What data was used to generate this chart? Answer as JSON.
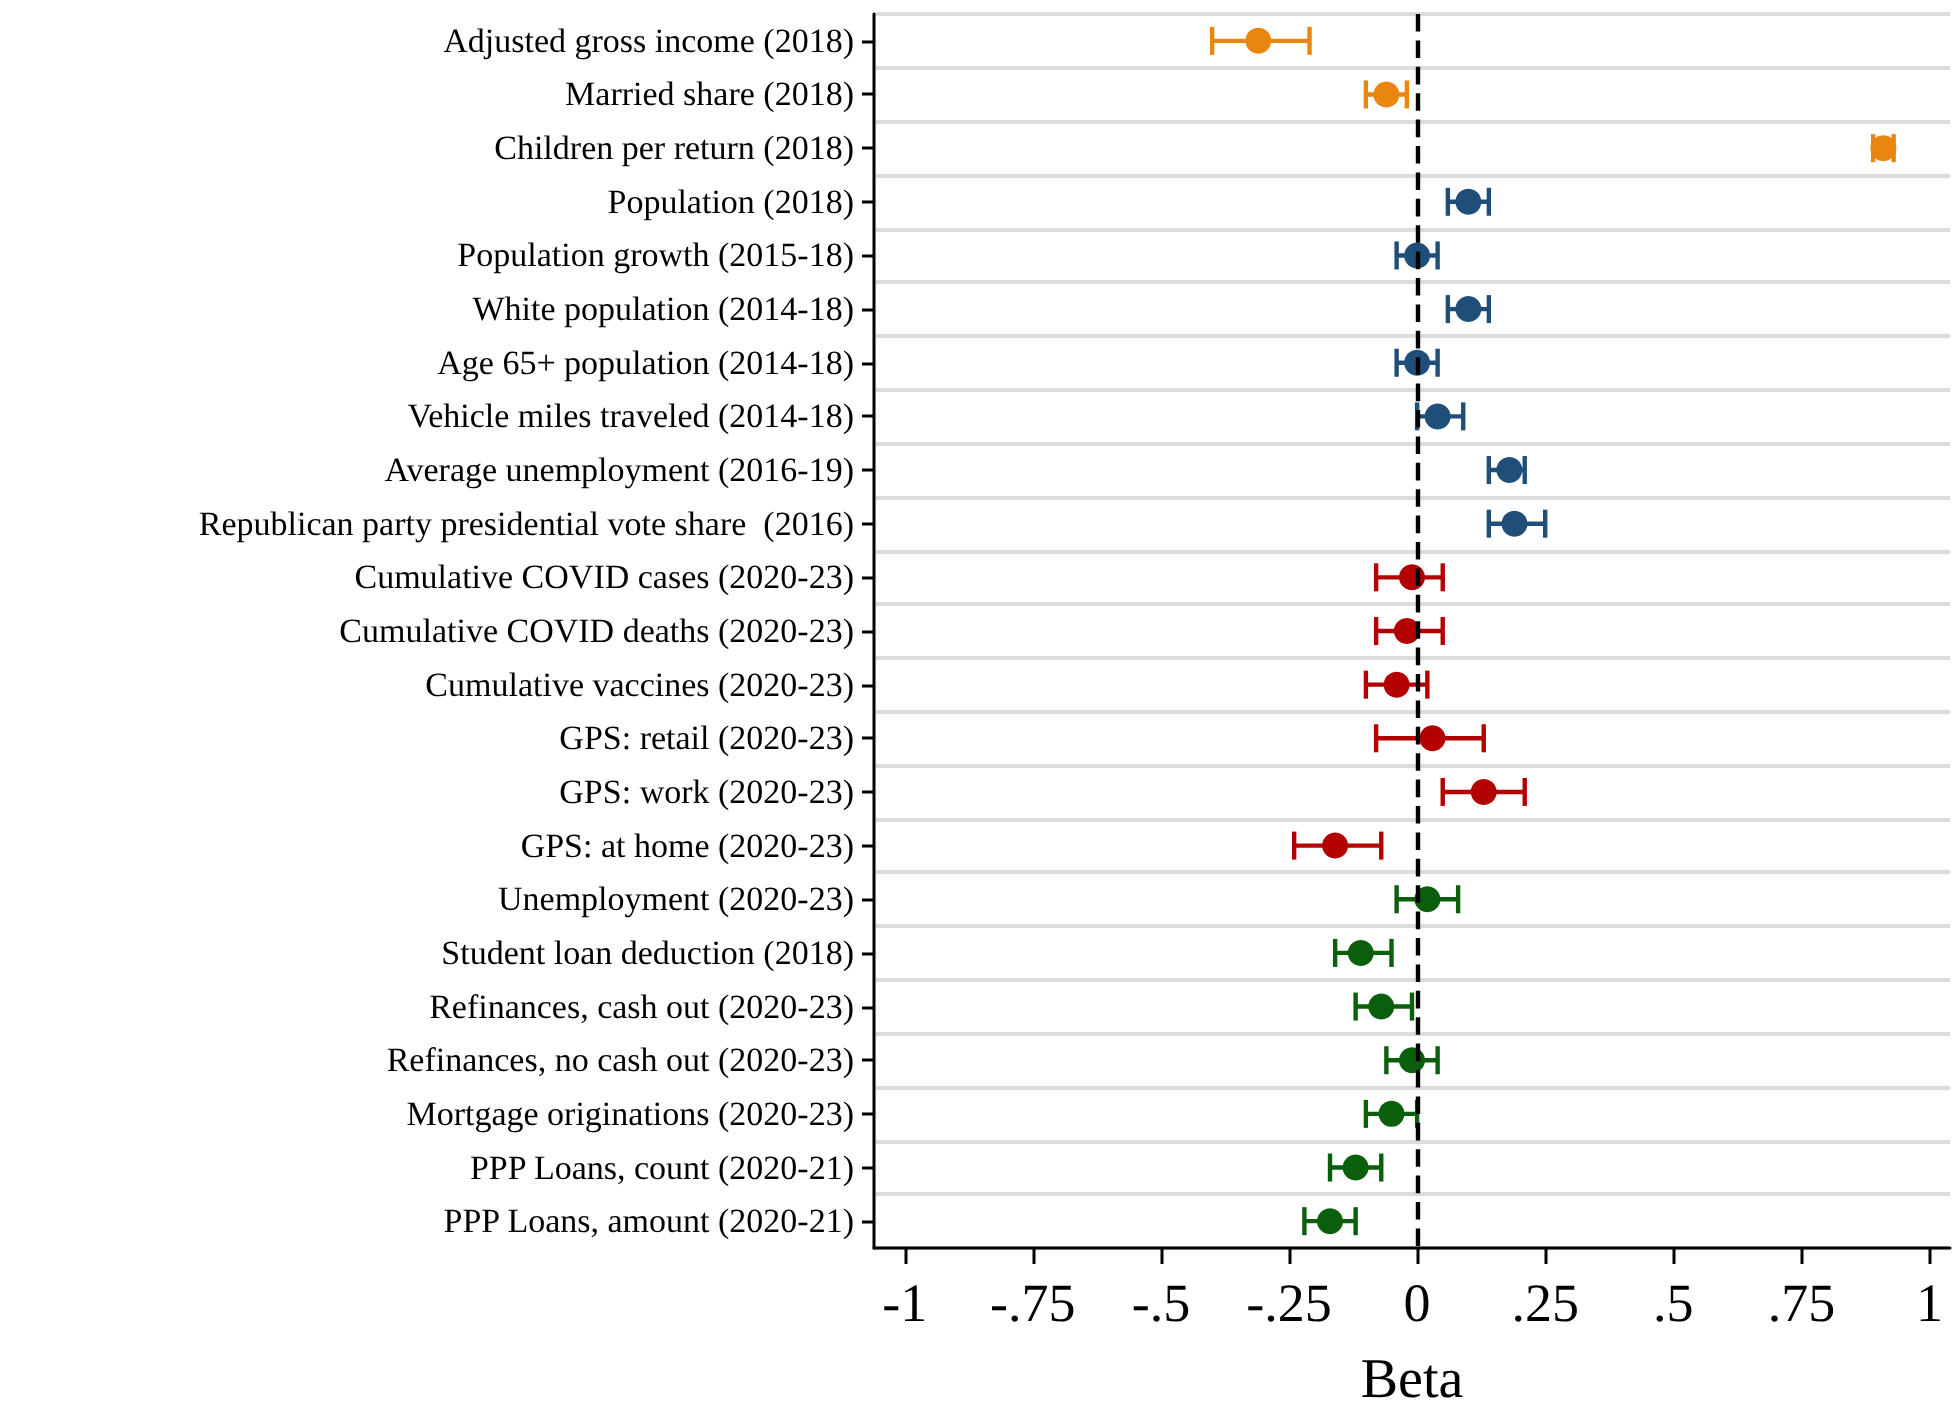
{
  "chart_data": {
    "type": "scatter",
    "orientation": "horizontal",
    "xlabel": "Beta",
    "categories": [
      "Adjusted gross income (2018)",
      "Married share (2018)",
      "Children per return (2018)",
      "Population (2018)",
      "Population growth (2015-18)",
      "White population (2014-18)",
      "Age 65+ population (2014-18)",
      "Vehicle miles traveled (2014-18)",
      "Average unemployment (2016-19)",
      "Republican party presidential vote share  (2016)",
      "Cumulative COVID cases (2020-23)",
      "Cumulative COVID deaths (2020-23)",
      "Cumulative vaccines (2020-23)",
      "GPS: retail (2020-23)",
      "GPS: work (2020-23)",
      "GPS: at home (2020-23)",
      "Unemployment (2020-23)",
      "Student loan deduction (2018)",
      "Refinances, cash out (2020-23)",
      "Refinances, no cash out (2020-23)",
      "Mortgage originations (2020-23)",
      "PPP Loans, count (2020-21)",
      "PPP Loans, amount (2020-21)"
    ],
    "series": [
      {
        "color": "#e8860f",
        "values": [
          -0.31,
          -0.06,
          0.91,
          null,
          null,
          null,
          null,
          null,
          null,
          null,
          null,
          null,
          null,
          null,
          null,
          null,
          null,
          null,
          null,
          null,
          null,
          null,
          null
        ],
        "errors": [
          [
            -0.4,
            -0.21
          ],
          [
            -0.1,
            -0.02
          ],
          [
            0.89,
            0.93
          ],
          null,
          null,
          null,
          null,
          null,
          null,
          null,
          null,
          null,
          null,
          null,
          null,
          null,
          null,
          null,
          null,
          null,
          null,
          null,
          null
        ]
      },
      {
        "color": "#1f4e79",
        "values": [
          null,
          null,
          null,
          0.1,
          0,
          0.1,
          0,
          0.04,
          0.18,
          0.19,
          null,
          null,
          null,
          null,
          null,
          null,
          null,
          null,
          null,
          null,
          null,
          null,
          null
        ],
        "errors": [
          null,
          null,
          null,
          [
            0.06,
            0.14
          ],
          [
            -0.04,
            0.04
          ],
          [
            0.06,
            0.14
          ],
          [
            -0.04,
            0.04
          ],
          [
            0,
            0.09
          ],
          [
            0.14,
            0.21
          ],
          [
            0.14,
            0.25
          ],
          null,
          null,
          null,
          null,
          null,
          null,
          null,
          null,
          null,
          null,
          null,
          null,
          null
        ]
      },
      {
        "color": "#b30000",
        "values": [
          null,
          null,
          null,
          null,
          null,
          null,
          null,
          null,
          null,
          null,
          -0.01,
          -0.02,
          -0.04,
          0.03,
          0.13,
          -0.16,
          null,
          null,
          null,
          null,
          null,
          null,
          null
        ],
        "errors": [
          null,
          null,
          null,
          null,
          null,
          null,
          null,
          null,
          null,
          null,
          [
            -0.08,
            0.05
          ],
          [
            -0.08,
            0.05
          ],
          [
            -0.1,
            0.02
          ],
          [
            -0.08,
            0.13
          ],
          [
            0.05,
            0.21
          ],
          [
            -0.24,
            -0.07
          ],
          null,
          null,
          null,
          null,
          null,
          null,
          null
        ]
      },
      {
        "color": "#0b5e0b",
        "values": [
          null,
          null,
          null,
          null,
          null,
          null,
          null,
          null,
          null,
          null,
          null,
          null,
          null,
          null,
          null,
          null,
          0.02,
          -0.11,
          -0.07,
          -0.01,
          -0.05,
          -0.12,
          -0.17
        ],
        "errors": [
          null,
          null,
          null,
          null,
          null,
          null,
          null,
          null,
          null,
          null,
          null,
          null,
          null,
          null,
          null,
          null,
          [
            -0.04,
            0.08
          ],
          [
            -0.16,
            -0.05
          ],
          [
            -0.12,
            -0.01
          ],
          [
            -0.06,
            0.04
          ],
          [
            -0.1,
            0
          ],
          [
            -0.17,
            -0.07
          ],
          [
            -0.22,
            -0.12
          ]
        ]
      }
    ],
    "xlim": [
      -1.06,
      1.04
    ],
    "xticks": [
      -1,
      {
        "value": -0.75,
        "label": "-.75"
      },
      {
        "value": -0.5,
        "label": "-.5"
      },
      {
        "value": -0.25,
        "label": "-.25"
      },
      0,
      {
        "value": 0.25,
        "label": ".25"
      },
      {
        "value": 0.5,
        "label": ".5"
      },
      {
        "value": 0.75,
        "label": ".75"
      },
      1
    ],
    "ref_lines": [
      {
        "axis": "x",
        "value": 0,
        "color": "#000000",
        "line_style": "dashed"
      }
    ],
    "grid": "y",
    "marker": "circle"
  }
}
